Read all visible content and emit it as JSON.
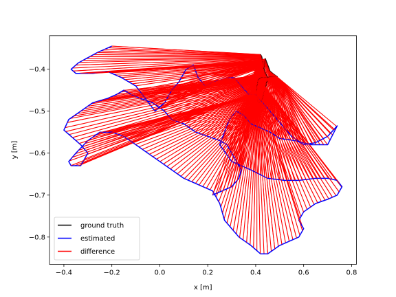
{
  "chart_data": {
    "type": "line",
    "xlabel": "x [m]",
    "ylabel": "y [m]",
    "xlim": [
      -0.46,
      0.82
    ],
    "ylim": [
      -0.865,
      -0.32
    ],
    "xticks": [
      "−0.4",
      "−0.2",
      "0.0",
      "0.2",
      "0.4",
      "0.6",
      "0.8"
    ],
    "xtick_values": [
      -0.4,
      -0.2,
      0.0,
      0.2,
      0.4,
      0.6,
      0.8
    ],
    "yticks": [
      "−0.4",
      "−0.5",
      "−0.6",
      "−0.7",
      "−0.8"
    ],
    "ytick_values": [
      -0.4,
      -0.5,
      -0.6,
      -0.7,
      -0.8
    ],
    "grid": false,
    "legend_position": "lower-left",
    "series": [
      {
        "name": "ground truth",
        "color": "#000000",
        "x": [
          0.42,
          0.425,
          0.43,
          0.435,
          0.44,
          0.45,
          0.46,
          0.475,
          0.49,
          0.47,
          0.445,
          0.425,
          0.41,
          0.405,
          0.405,
          0.41,
          0.425,
          0.44,
          0.45,
          0.44,
          0.43,
          0.42
        ],
        "y": [
          -0.365,
          -0.37,
          -0.385,
          -0.395,
          -0.375,
          -0.39,
          -0.405,
          -0.412,
          -0.418,
          -0.418,
          -0.42,
          -0.42,
          -0.425,
          -0.445,
          -0.47,
          -0.48,
          -0.473,
          -0.445,
          -0.42,
          -0.41,
          -0.39,
          -0.365
        ]
      },
      {
        "name": "estimated",
        "color": "#0000ff",
        "x": [
          -0.2,
          -0.22,
          -0.26,
          -0.34,
          -0.37,
          -0.35,
          -0.28,
          -0.22,
          -0.16,
          -0.1,
          -0.06,
          -0.02,
          0.02,
          0.05,
          0.08,
          0.11,
          0.14,
          0.16,
          0.19,
          0.23,
          0.28,
          0.31,
          0.34,
          0.37,
          0.4,
          0.43,
          0.46,
          0.49,
          0.52,
          0.55,
          0.6,
          0.65,
          0.7,
          0.74,
          0.7,
          0.63,
          0.56,
          0.5,
          0.46,
          0.42,
          0.38,
          0.35,
          0.32,
          0.29,
          0.27,
          0.25,
          0.3,
          0.38,
          0.45,
          0.52,
          0.58,
          0.65,
          0.7,
          0.74,
          0.76,
          0.74,
          0.7,
          0.65,
          0.6,
          0.58,
          0.6,
          0.58,
          0.5,
          0.45,
          0.42,
          0.38,
          0.33,
          0.3,
          0.27,
          0.25,
          0.22,
          0.18,
          0.14,
          0.1,
          0.05,
          0.0,
          -0.05,
          -0.1,
          -0.15,
          -0.2,
          -0.25,
          -0.3,
          -0.35,
          -0.38,
          -0.37,
          -0.33,
          -0.3,
          -0.33,
          -0.37,
          -0.4,
          -0.38,
          -0.33,
          -0.28,
          -0.22,
          -0.18,
          -0.15,
          -0.12,
          -0.08,
          -0.03,
          0.02,
          0.05,
          0.1,
          0.15,
          0.2,
          0.25,
          0.28,
          0.3,
          0.32,
          0.34,
          0.33,
          0.3,
          0.26,
          0.22
        ],
        "y": [
          -0.345,
          -0.35,
          -0.36,
          -0.385,
          -0.4,
          -0.41,
          -0.41,
          -0.405,
          -0.42,
          -0.44,
          -0.47,
          -0.5,
          -0.48,
          -0.45,
          -0.43,
          -0.4,
          -0.39,
          -0.42,
          -0.44,
          -0.43,
          -0.42,
          -0.42,
          -0.44,
          -0.46,
          -0.46,
          -0.48,
          -0.5,
          -0.52,
          -0.54,
          -0.56,
          -0.58,
          -0.575,
          -0.56,
          -0.535,
          -0.58,
          -0.58,
          -0.57,
          -0.565,
          -0.55,
          -0.54,
          -0.53,
          -0.51,
          -0.5,
          -0.52,
          -0.55,
          -0.58,
          -0.62,
          -0.64,
          -0.66,
          -0.665,
          -0.665,
          -0.66,
          -0.66,
          -0.665,
          -0.68,
          -0.7,
          -0.71,
          -0.72,
          -0.74,
          -0.76,
          -0.78,
          -0.8,
          -0.82,
          -0.84,
          -0.84,
          -0.82,
          -0.8,
          -0.78,
          -0.76,
          -0.72,
          -0.69,
          -0.68,
          -0.67,
          -0.66,
          -0.64,
          -0.62,
          -0.6,
          -0.58,
          -0.56,
          -0.55,
          -0.55,
          -0.57,
          -0.6,
          -0.62,
          -0.63,
          -0.63,
          -0.6,
          -0.58,
          -0.56,
          -0.545,
          -0.52,
          -0.5,
          -0.48,
          -0.47,
          -0.46,
          -0.45,
          -0.46,
          -0.47,
          -0.48,
          -0.5,
          -0.52,
          -0.53,
          -0.55,
          -0.56,
          -0.57,
          -0.58,
          -0.6,
          -0.62,
          -0.64,
          -0.66,
          -0.68,
          -0.69,
          -0.7
        ]
      },
      {
        "name": "difference",
        "color": "#ff0000"
      }
    ]
  }
}
